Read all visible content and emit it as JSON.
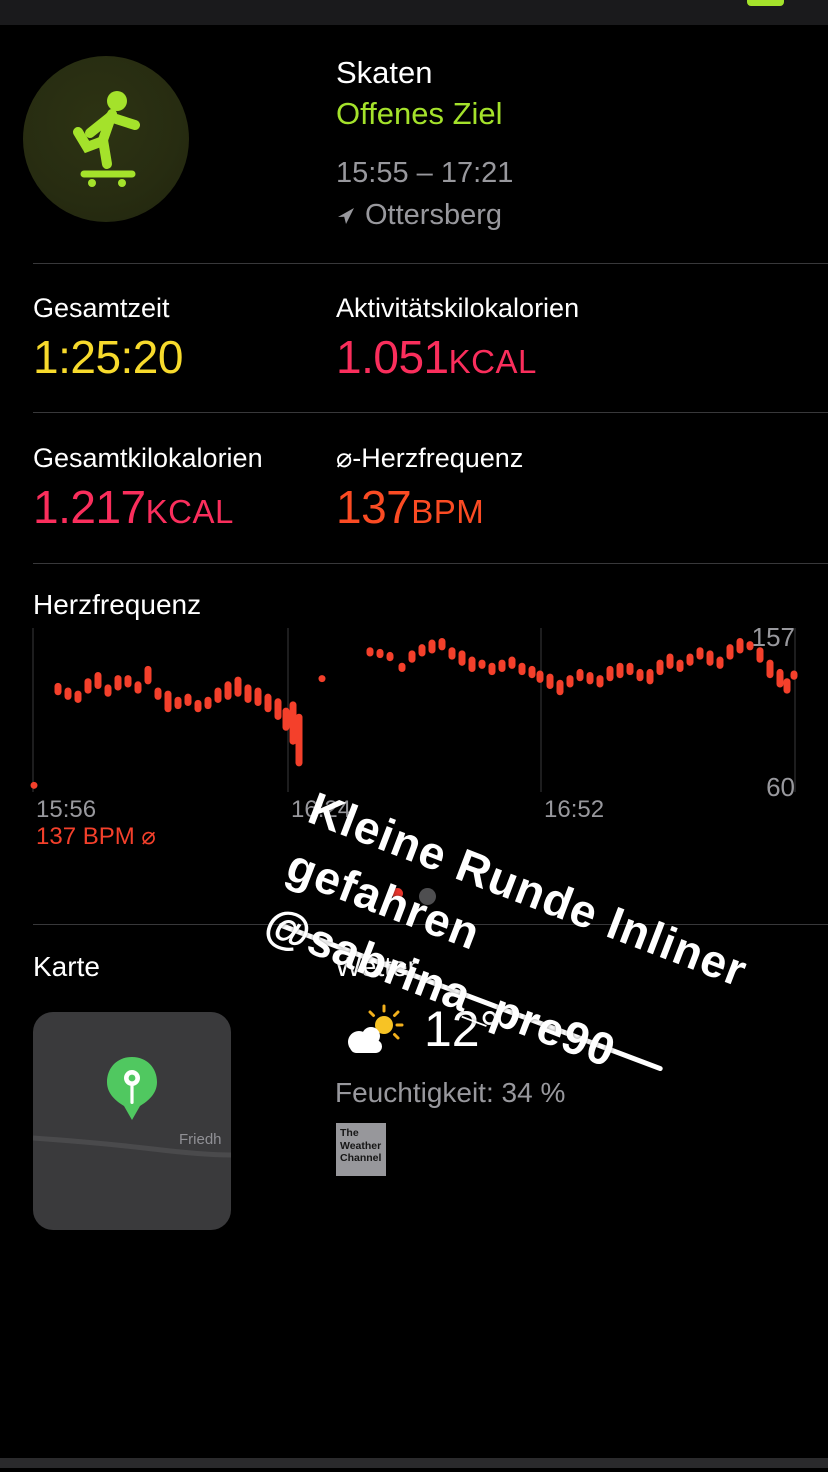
{
  "colors": {
    "accent_green": "#a4e22b",
    "time_yellow": "#f7da2c",
    "kcal_pink": "#fa2e5c",
    "bpm_orange": "#fb4b23",
    "chart_red": "#f4402b",
    "muted_gray": "#98989d"
  },
  "header": {
    "title": "Skaten",
    "subtitle": "Offenes Ziel",
    "time_range": "15:55 – 17:21",
    "location": "Ottersberg",
    "icon": "skateboarder-icon"
  },
  "stats": [
    {
      "label": "Gesamtzeit",
      "value": "1:25:20",
      "unit": ""
    },
    {
      "label": "Aktivitätskilokalorien",
      "value": "1.051",
      "unit": "KCAL"
    },
    {
      "label": "Gesamtkilokalorien",
      "value": "1.217",
      "unit": "KCAL"
    },
    {
      "label": "⌀-Herzfrequenz",
      "value": "137",
      "unit": "BPM"
    }
  ],
  "heart_rate": {
    "title": "Herzfrequenz",
    "y_max": "157",
    "y_min": "60",
    "ticks": [
      "15:56",
      "16:24",
      "16:52"
    ],
    "avg": "137 BPM ⌀"
  },
  "chart_data": {
    "type": "bar",
    "title": "Herzfrequenz",
    "ylabel": "BPM",
    "ylim": [
      60,
      157
    ],
    "avg_bpm": 137,
    "x_tick_labels": [
      "15:56",
      "16:24",
      "16:52"
    ],
    "grid_t": [
      0,
      255,
      508,
      762
    ],
    "x_unit": "px offset 0–762 across 15:56–17:20",
    "outlier": [
      1,
      60,
      64
    ],
    "samples": [
      [
        25,
        120,
        128
      ],
      [
        35,
        117,
        125
      ],
      [
        45,
        115,
        123
      ],
      [
        55,
        121,
        131
      ],
      [
        65,
        124,
        135
      ],
      [
        75,
        119,
        127
      ],
      [
        85,
        123,
        133
      ],
      [
        95,
        125,
        133
      ],
      [
        105,
        121,
        129
      ],
      [
        115,
        127,
        139
      ],
      [
        125,
        117,
        125
      ],
      [
        135,
        109,
        123
      ],
      [
        145,
        111,
        119
      ],
      [
        155,
        113,
        121
      ],
      [
        165,
        109,
        117
      ],
      [
        175,
        111,
        119
      ],
      [
        185,
        115,
        125
      ],
      [
        195,
        117,
        129
      ],
      [
        205,
        119,
        132
      ],
      [
        215,
        115,
        127
      ],
      [
        225,
        113,
        125
      ],
      [
        235,
        109,
        121
      ],
      [
        245,
        104,
        118
      ],
      [
        253,
        97,
        112
      ],
      [
        260,
        88,
        116
      ],
      [
        266,
        74,
        108
      ],
      [
        289,
        129,
        133
      ],
      [
        337,
        145,
        151
      ],
      [
        347,
        144,
        150
      ],
      [
        357,
        142,
        148
      ],
      [
        369,
        135,
        141
      ],
      [
        379,
        141,
        149
      ],
      [
        389,
        145,
        153
      ],
      [
        399,
        147,
        156
      ],
      [
        409,
        149,
        157
      ],
      [
        419,
        143,
        151
      ],
      [
        429,
        139,
        149
      ],
      [
        439,
        135,
        145
      ],
      [
        449,
        137,
        143
      ],
      [
        459,
        133,
        141
      ],
      [
        469,
        135,
        143
      ],
      [
        479,
        137,
        145
      ],
      [
        489,
        133,
        141
      ],
      [
        499,
        131,
        139
      ],
      [
        507,
        128,
        136
      ],
      [
        517,
        124,
        134
      ],
      [
        527,
        120,
        130
      ],
      [
        537,
        125,
        133
      ],
      [
        547,
        129,
        137
      ],
      [
        557,
        127,
        135
      ],
      [
        567,
        125,
        133
      ],
      [
        577,
        129,
        139
      ],
      [
        587,
        131,
        141
      ],
      [
        597,
        133,
        141
      ],
      [
        607,
        129,
        137
      ],
      [
        617,
        127,
        137
      ],
      [
        627,
        133,
        143
      ],
      [
        637,
        137,
        147
      ],
      [
        647,
        135,
        143
      ],
      [
        657,
        139,
        147
      ],
      [
        667,
        143,
        151
      ],
      [
        677,
        139,
        149
      ],
      [
        687,
        137,
        145
      ],
      [
        697,
        143,
        153
      ],
      [
        707,
        147,
        157
      ],
      [
        717,
        149,
        155
      ],
      [
        727,
        141,
        151
      ],
      [
        737,
        131,
        143
      ],
      [
        747,
        125,
        137
      ],
      [
        754,
        121,
        131
      ],
      [
        761,
        130,
        136
      ]
    ]
  },
  "overlay": {
    "lines": [
      "Kleine Runde Inliner",
      "gefahren",
      "@sabrina_pre90"
    ]
  },
  "map": {
    "title": "Karte",
    "road_label": "Friedh"
  },
  "weather": {
    "title": "Wetter",
    "temperature": "12°",
    "humidity": "Feuchtigkeit: 34 %",
    "provider_lines": [
      "The",
      "Weather",
      "Channel"
    ]
  }
}
